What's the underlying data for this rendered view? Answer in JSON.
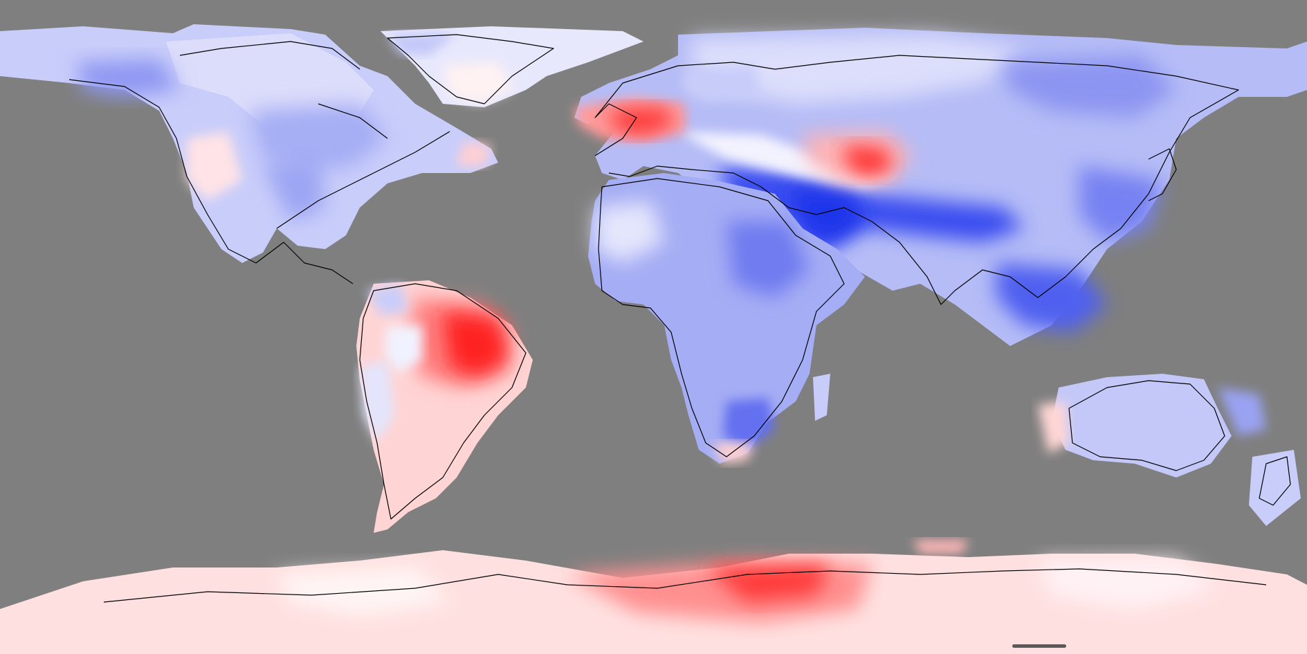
{
  "map": {
    "projection": "equirectangular",
    "colors": {
      "ocean": "#7f7f7f",
      "coastline": "#000000",
      "strong_negative": "#2a3ff0",
      "moderate_negative": "#7a86f0",
      "weak_negative": "#c9cdfa",
      "neutral": "#f7f7ff",
      "weak_positive": "#ffd6d6",
      "moderate_positive": "#ff8a8a",
      "strong_positive": "#ff1a1a"
    },
    "features": {
      "anomaly_regions": [
        "north-america-negative",
        "greenland-weak",
        "western-europe-positive",
        "caspian-positive",
        "middle-east-asia-strong-negative",
        "africa-negative",
        "amazon-positive",
        "south-america-weak-positive",
        "australia-negative",
        "antarctica-positive"
      ]
    }
  },
  "scrollbar": {
    "visible": true
  }
}
